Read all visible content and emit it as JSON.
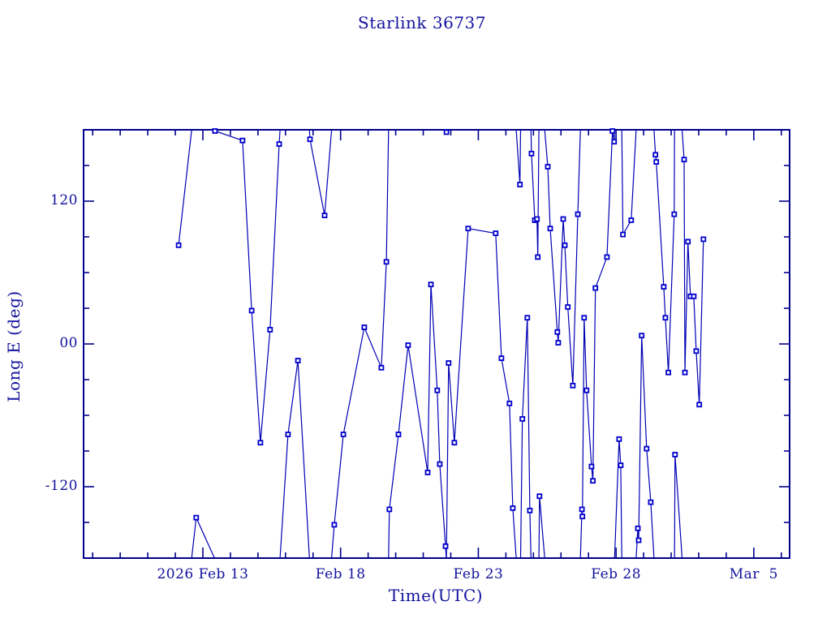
{
  "title": "Starlink 36737",
  "axes": {
    "x_label": "Time(UTC)",
    "y_label": "Long E (deg)",
    "x_major_ticks": [
      {
        "day": 13,
        "label": "2026 Feb 13"
      },
      {
        "day": 18,
        "label": "Feb 18"
      },
      {
        "day": 23,
        "label": "Feb 23"
      },
      {
        "day": 28,
        "label": "Feb 28"
      },
      {
        "day": 33,
        "label": "Mar  5"
      }
    ],
    "y_major_ticks": [
      {
        "value": 120,
        "label": "120"
      },
      {
        "value": 0,
        "label": "00"
      },
      {
        "value": -120,
        "label": "-120"
      }
    ],
    "x_minor_step_days": 1,
    "y_minor_step_deg": 30
  },
  "colors": {
    "frame": "#00008c",
    "text": "#12129e",
    "line": "#0000b4",
    "marker": "#0000cc",
    "background": "#ffffff"
  },
  "chart_data": {
    "type": "line",
    "title": "Starlink 36737",
    "xlabel": "Time(UTC)",
    "ylabel": "Long E (deg)",
    "x_unit": "decimal day of Feb 2026 (Feb 13 = 13, Mar 5 = 33)",
    "xlim": [
      8.67,
      34.3
    ],
    "ylim": [
      -180,
      180
    ],
    "grid": false,
    "legend": "none",
    "marker_style": "open-square",
    "wrap_at_deg": 180,
    "series": [
      {
        "name": "longitude-east",
        "points": [
          [
            12.12,
            83
          ],
          [
            12.76,
            -146
          ],
          [
            13.44,
            179
          ],
          [
            14.44,
            171
          ],
          [
            14.77,
            28
          ],
          [
            15.09,
            -83
          ],
          [
            15.44,
            12
          ],
          [
            15.77,
            168
          ],
          [
            16.09,
            -76
          ],
          [
            16.45,
            -14
          ],
          [
            16.89,
            172
          ],
          [
            17.42,
            108
          ],
          [
            17.77,
            -152
          ],
          [
            18.1,
            -76
          ],
          [
            18.86,
            14
          ],
          [
            19.48,
            -20
          ],
          [
            19.66,
            69
          ],
          [
            19.77,
            -139
          ],
          [
            20.1,
            -76
          ],
          [
            20.45,
            -1
          ],
          [
            21.16,
            -108
          ],
          [
            21.28,
            50
          ],
          [
            21.51,
            -39
          ],
          [
            21.6,
            -101
          ],
          [
            21.81,
            -170
          ],
          [
            21.84,
            178
          ],
          [
            21.92,
            -16
          ],
          [
            22.13,
            -83
          ],
          [
            22.63,
            97
          ],
          [
            23.63,
            93
          ],
          [
            23.84,
            -12
          ],
          [
            24.13,
            -50
          ],
          [
            24.25,
            -138
          ],
          [
            24.51,
            134
          ],
          [
            24.6,
            -63
          ],
          [
            24.78,
            22
          ],
          [
            24.87,
            -140
          ],
          [
            24.93,
            160
          ],
          [
            25.05,
            104
          ],
          [
            25.13,
            105
          ],
          [
            25.16,
            73
          ],
          [
            25.22,
            -128
          ],
          [
            25.52,
            149
          ],
          [
            25.61,
            97
          ],
          [
            25.87,
            10
          ],
          [
            25.9,
            1
          ],
          [
            26.08,
            105
          ],
          [
            26.14,
            83
          ],
          [
            26.25,
            31
          ],
          [
            26.43,
            -35
          ],
          [
            26.61,
            109
          ],
          [
            26.76,
            -139
          ],
          [
            26.78,
            -145
          ],
          [
            26.84,
            22
          ],
          [
            26.93,
            -39
          ],
          [
            27.11,
            -103
          ],
          [
            27.16,
            -115
          ],
          [
            27.25,
            47
          ],
          [
            27.67,
            73
          ],
          [
            27.87,
            179
          ],
          [
            27.93,
            170
          ],
          [
            28.11,
            -80
          ],
          [
            28.17,
            -102
          ],
          [
            28.25,
            92
          ],
          [
            28.55,
            104
          ],
          [
            28.79,
            -155
          ],
          [
            28.82,
            -165
          ],
          [
            28.93,
            7
          ],
          [
            29.11,
            -88
          ],
          [
            29.26,
            -133
          ],
          [
            29.43,
            159
          ],
          [
            29.46,
            153
          ],
          [
            29.73,
            48
          ],
          [
            29.79,
            22
          ],
          [
            29.9,
            -24
          ],
          [
            30.11,
            109
          ],
          [
            30.14,
            -93
          ],
          [
            30.47,
            155
          ],
          [
            30.5,
            -24
          ],
          [
            30.61,
            86
          ],
          [
            30.7,
            40
          ],
          [
            30.82,
            40
          ],
          [
            30.91,
            -6
          ],
          [
            31.02,
            -51
          ],
          [
            31.17,
            88
          ]
        ]
      }
    ]
  }
}
